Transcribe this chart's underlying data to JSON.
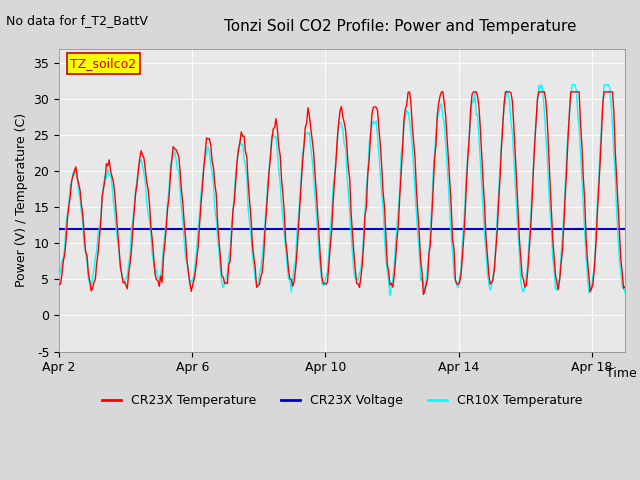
{
  "title": "Tonzi Soil CO2 Profile: Power and Temperature",
  "subtitle": "No data for f_T2_BattV",
  "ylabel": "Power (V) / Temperature (C)",
  "xlabel": "Time",
  "ylim": [
    -5,
    37
  ],
  "yticks": [
    -5,
    0,
    5,
    10,
    15,
    20,
    25,
    30,
    35
  ],
  "xlim_start": 0,
  "xlim_end": 17,
  "xtick_positions": [
    0,
    4,
    8,
    12,
    16
  ],
  "xtick_labels": [
    "Apr 2",
    "Apr 6",
    "Apr 10",
    "Apr 14",
    "Apr 18"
  ],
  "voltage_value": 12.0,
  "legend_labels": [
    "CR23X Temperature",
    "CR23X Voltage",
    "CR10X Temperature"
  ],
  "legend_colors": [
    "#ff0000",
    "#0000cc",
    "#00ffff"
  ],
  "cr23x_color": "#ff0000",
  "cr10x_color": "#00ffff",
  "voltage_color": "#0000cc",
  "bg_color": "#e8e8e8",
  "plot_bg_color": "#f0f0f0",
  "annotation_box_color": "#ffff00",
  "annotation_text": "TZ_soilco2",
  "annotation_text_color": "#cc0000"
}
